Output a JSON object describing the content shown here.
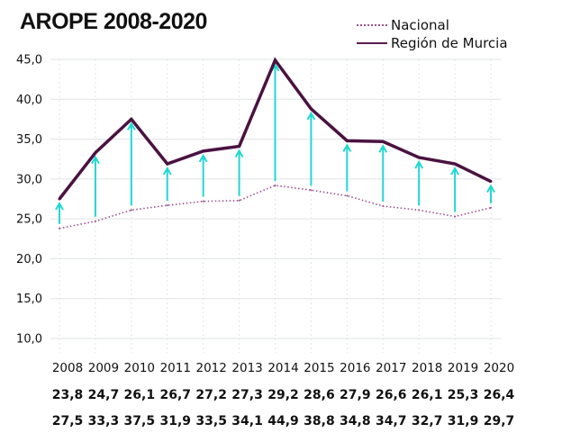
{
  "chart_data": {
    "type": "line",
    "title": "AROPE 2008-2020",
    "xlabel": "",
    "ylabel": "",
    "ylim": [
      10,
      45
    ],
    "yticks": [
      "10,0",
      "15,0",
      "20,0",
      "25,0",
      "30,0",
      "35,0",
      "40,0",
      "45,0"
    ],
    "ytick_values": [
      10,
      15,
      20,
      25,
      30,
      35,
      40,
      45
    ],
    "grid": true,
    "legend_position": "top-right",
    "categories": [
      "2008",
      "2009",
      "2010",
      "2011",
      "2012",
      "2013",
      "2014",
      "2015",
      "2016",
      "2017",
      "2018",
      "2019",
      "2020"
    ],
    "series": [
      {
        "name": "Nacional",
        "style": "dotted",
        "color": "#9b4f8e",
        "values": [
          23.8,
          24.7,
          26.1,
          26.7,
          27.2,
          27.3,
          29.2,
          28.6,
          27.9,
          26.6,
          26.1,
          25.3,
          26.4
        ],
        "labels": [
          "23,8",
          "24,7",
          "26,1",
          "26,7",
          "27,2",
          "27,3",
          "29,2",
          "28,6",
          "27,9",
          "26,6",
          "26,1",
          "25,3",
          "26,4"
        ]
      },
      {
        "name": "Región de Murcia",
        "style": "solid",
        "color": "#4a1241",
        "values": [
          27.5,
          33.3,
          37.5,
          31.9,
          33.5,
          34.1,
          44.9,
          38.8,
          34.8,
          34.7,
          32.7,
          31.9,
          29.7
        ],
        "labels": [
          "27,5",
          "33,3",
          "37,5",
          "31,9",
          "33,5",
          "34,1",
          "44,9",
          "38,8",
          "34,8",
          "34,7",
          "32,7",
          "31,9",
          "29,7"
        ]
      }
    ],
    "annotations": "Cyan arrows from Nacional value up to Región de Murcia value for each year",
    "arrow_color": "#22d8d0"
  },
  "legend": {
    "items": [
      {
        "label": "Nacional"
      },
      {
        "label": "Región de Murcia"
      }
    ]
  }
}
